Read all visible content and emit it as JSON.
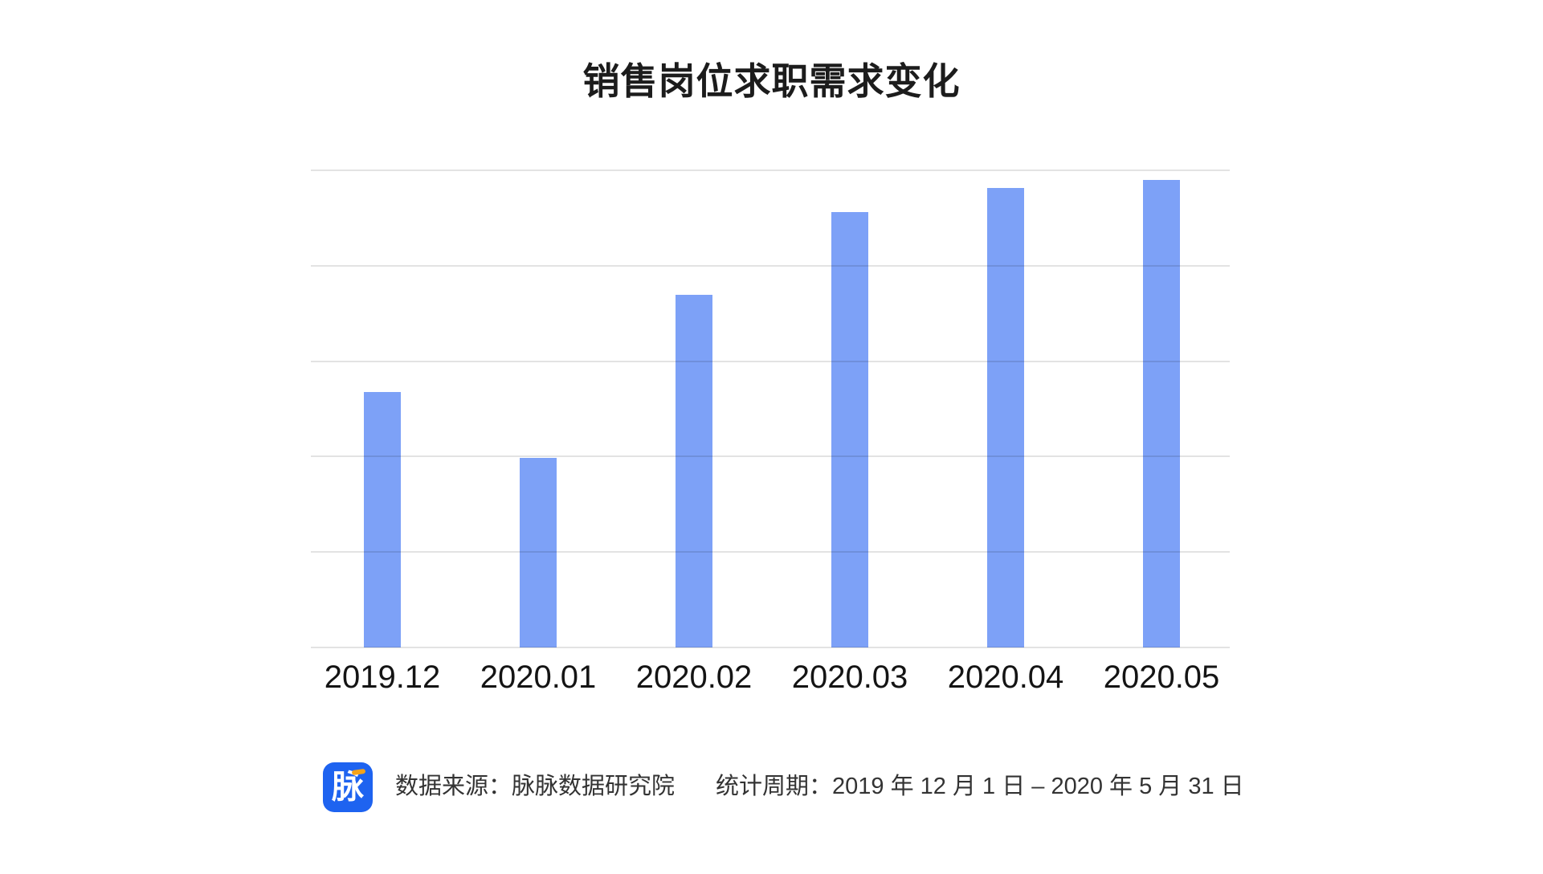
{
  "page": {
    "background": "#ffffff"
  },
  "chart": {
    "title": "销售岗位求职需求变化"
  },
  "chart_data": {
    "type": "bar",
    "title": "销售岗位求职需求变化",
    "categories": [
      "2019.12",
      "2020.01",
      "2020.02",
      "2020.03",
      "2020.04",
      "2020.05"
    ],
    "values": [
      53.5,
      39.7,
      73.9,
      91.2,
      96.3,
      98.0
    ],
    "xlabel": "",
    "ylabel": "",
    "ylim": [
      0,
      100
    ],
    "y_tick_labels_visible": false,
    "gridline_values": [
      0,
      20,
      40,
      60,
      80,
      100
    ],
    "grid": true,
    "legend_position": "none",
    "bar_color": "#7DA1F7",
    "gridline_color": "rgba(0,0,0,0.11)"
  },
  "footer": {
    "logo_text": "脉",
    "logo_color": "#1E63F0",
    "logo_accent_color": "#F5A31A",
    "source_label": "数据来源：脉脉数据研究院",
    "period_label": "统计周期：2019 年 12 月 1 日 – 2020 年 5 月 31 日"
  }
}
